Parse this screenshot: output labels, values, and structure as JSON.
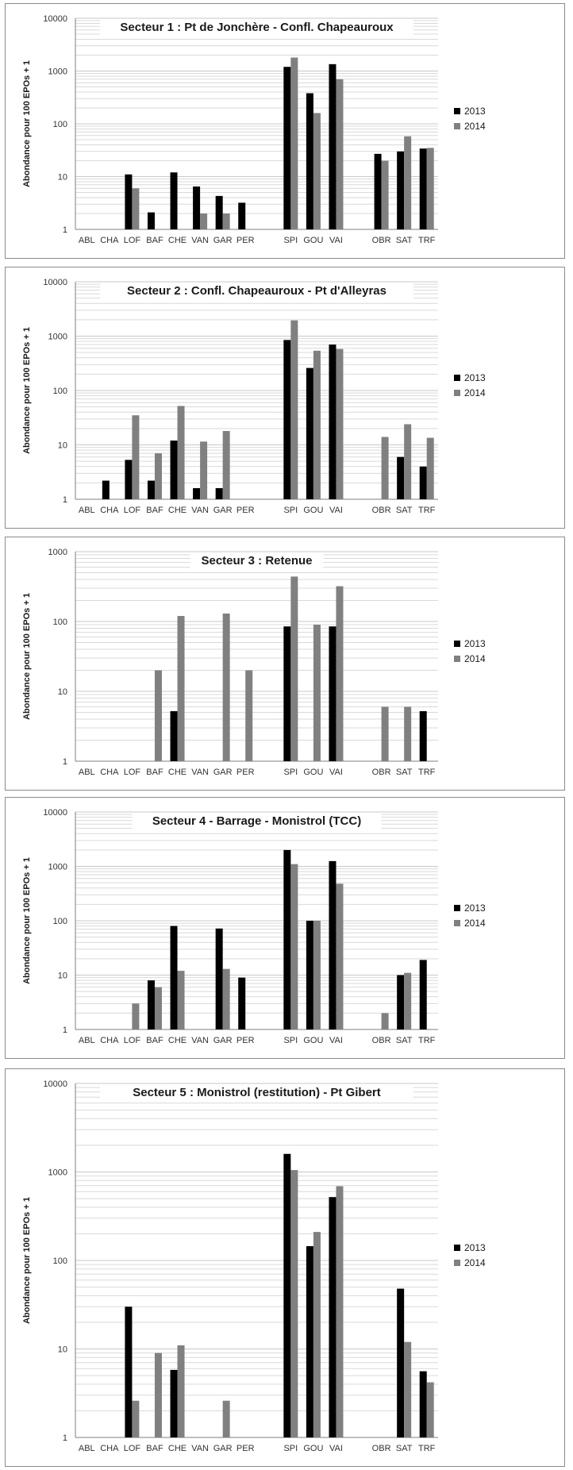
{
  "colors": {
    "y2013": "#000000",
    "y2014": "#808080",
    "grid": "#c8c8c8",
    "axis": "#7f7f7f"
  },
  "chart_data": [
    {
      "type": "bar",
      "title": "Secteur 1 : Pt de Jonchère - Confl. Chapeauroux",
      "ylabel": "Abondance pour 100 EPOs + 1",
      "yscale": "log",
      "ylim": [
        1,
        10000
      ],
      "yticks": [
        "1",
        "10",
        "100",
        "1000",
        "10000"
      ],
      "legend_position": "right",
      "grid": true,
      "categories": [
        "ABL",
        "CHA",
        "LOF",
        "BAF",
        "CHE",
        "VAN",
        "GAR",
        "PER",
        "",
        "SPI",
        "GOU",
        "VAI",
        "",
        "OBR",
        "SAT",
        "TRF"
      ],
      "series": [
        {
          "name": "2013",
          "values": [
            null,
            null,
            11,
            2.1,
            12,
            6.5,
            4.3,
            3.2,
            null,
            1200,
            380,
            1350,
            null,
            27,
            30,
            34
          ]
        },
        {
          "name": "2014",
          "values": [
            null,
            null,
            6,
            null,
            null,
            2,
            2,
            null,
            null,
            1800,
            160,
            700,
            null,
            20,
            58,
            35
          ]
        }
      ]
    },
    {
      "type": "bar",
      "title": "Secteur  2 : Confl. Chapeauroux - Pt d'Alleyras",
      "ylabel": "Abondance pour 100 EPOs + 1",
      "yscale": "log",
      "ylim": [
        1,
        10000
      ],
      "yticks": [
        "1",
        "10",
        "100",
        "1000",
        "10000"
      ],
      "legend_position": "right",
      "grid": true,
      "categories": [
        "ABL",
        "CHA",
        "LOF",
        "BAF",
        "CHE",
        "VAN",
        "GAR",
        "PER",
        "",
        "SPI",
        "GOU",
        "VAI",
        "",
        "OBR",
        "SAT",
        "TRF"
      ],
      "series": [
        {
          "name": "2013",
          "values": [
            null,
            2.2,
            5.3,
            2.2,
            12,
            1.6,
            1.6,
            null,
            null,
            850,
            260,
            700,
            null,
            null,
            6,
            4
          ]
        },
        {
          "name": "2014",
          "values": [
            null,
            null,
            35,
            7,
            52,
            11.5,
            18,
            null,
            null,
            1950,
            540,
            580,
            null,
            14,
            24,
            13.5
          ]
        }
      ]
    },
    {
      "type": "bar",
      "title": "Secteur 3 : Retenue",
      "ylabel": "Abondance pour 100 EPOs + 1",
      "yscale": "log",
      "ylim": [
        1,
        1000
      ],
      "yticks": [
        "1",
        "10",
        "100",
        "1000"
      ],
      "legend_position": "right",
      "grid": true,
      "categories": [
        "ABL",
        "CHA",
        "LOF",
        "BAF",
        "CHE",
        "VAN",
        "GAR",
        "PER",
        "",
        "SPI",
        "GOU",
        "VAI",
        "",
        "OBR",
        "SAT",
        "TRF"
      ],
      "series": [
        {
          "name": "2013",
          "values": [
            null,
            null,
            null,
            null,
            5.2,
            null,
            null,
            null,
            null,
            85,
            null,
            85,
            null,
            null,
            null,
            5.2
          ]
        },
        {
          "name": "2014",
          "values": [
            null,
            null,
            null,
            20,
            120,
            null,
            130,
            20,
            null,
            440,
            90,
            320,
            null,
            6,
            6,
            null
          ]
        }
      ]
    },
    {
      "type": "bar",
      "title": "Secteur 4 - Barrage - Monistrol (TCC)",
      "ylabel": "Abondance pour 100 EPOs + 1",
      "yscale": "log",
      "ylim": [
        1,
        10000
      ],
      "yticks": [
        "1",
        "10",
        "100",
        "1000",
        "10000"
      ],
      "legend_position": "right",
      "grid": true,
      "categories": [
        "ABL",
        "CHA",
        "LOF",
        "BAF",
        "CHE",
        "VAN",
        "GAR",
        "PER",
        "",
        "SPI",
        "GOU",
        "VAI",
        "",
        "OBR",
        "SAT",
        "TRF"
      ],
      "series": [
        {
          "name": "2013",
          "values": [
            null,
            null,
            null,
            8,
            80,
            null,
            72,
            9,
            null,
            2000,
            100,
            1250,
            null,
            null,
            10,
            19
          ]
        },
        {
          "name": "2014",
          "values": [
            null,
            null,
            3,
            6,
            12,
            null,
            13,
            null,
            null,
            1100,
            100,
            480,
            null,
            2,
            11,
            null
          ]
        }
      ]
    },
    {
      "type": "bar",
      "title": "Secteur 5 : Monistrol (restitution) - Pt Gibert",
      "ylabel": "Abondance pour 100 EPOs + 1",
      "yscale": "log",
      "ylim": [
        1,
        10000
      ],
      "yticks": [
        "1",
        "10",
        "100",
        "1000",
        "10000"
      ],
      "legend_position": "right",
      "grid": true,
      "categories": [
        "ABL",
        "CHA",
        "LOF",
        "BAF",
        "CHE",
        "VAN",
        "GAR",
        "PER",
        "",
        "SPI",
        "GOU",
        "VAI",
        "",
        "OBR",
        "SAT",
        "TRF"
      ],
      "series": [
        {
          "name": "2013",
          "values": [
            null,
            null,
            30,
            null,
            5.8,
            null,
            null,
            null,
            null,
            1600,
            145,
            520,
            null,
            null,
            48,
            5.6
          ]
        },
        {
          "name": "2014",
          "values": [
            null,
            null,
            2.6,
            9,
            11,
            null,
            2.6,
            null,
            null,
            1050,
            210,
            690,
            null,
            null,
            12,
            4.2
          ]
        }
      ]
    }
  ]
}
